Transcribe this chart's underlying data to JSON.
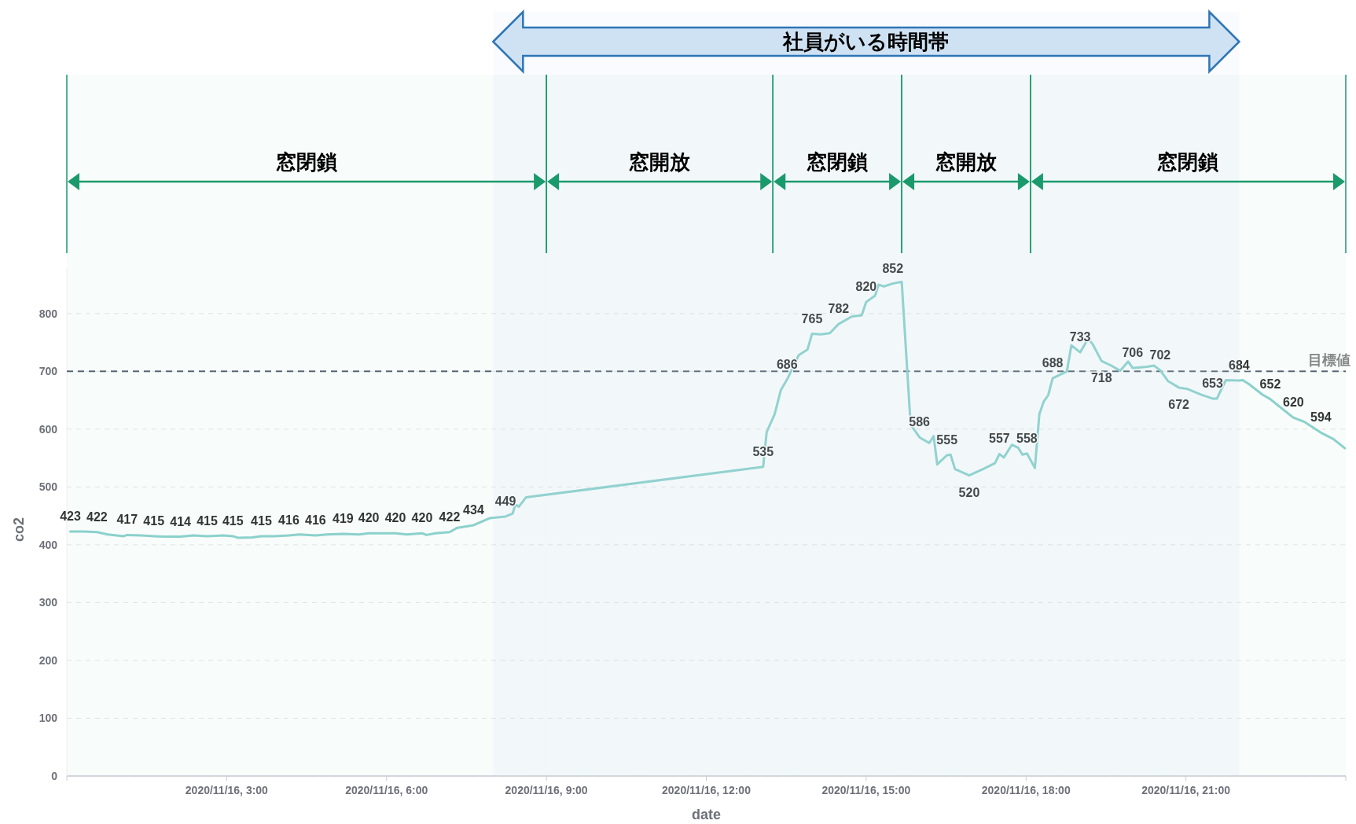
{
  "chart_data": {
    "type": "line",
    "xlabel": "date",
    "ylabel": "co2",
    "x": [
      "2020-11-16T00:04",
      "2020-11-16T00:19",
      "2020-11-16T00:34",
      "2020-11-16T00:46",
      "2020-11-16T01:04",
      "2020-11-16T01:08",
      "2020-11-16T01:24",
      "2020-11-16T01:38",
      "2020-11-16T01:49",
      "2020-11-16T02:08",
      "2020-11-16T02:22",
      "2020-11-16T02:38",
      "2020-11-16T02:56",
      "2020-11-16T03:07",
      "2020-11-16T03:13",
      "2020-11-16T03:29",
      "2020-11-16T03:39",
      "2020-11-16T03:53",
      "2020-11-16T04:10",
      "2020-11-16T04:22",
      "2020-11-16T04:40",
      "2020-11-16T04:53",
      "2020-11-16T05:11",
      "2020-11-16T05:29",
      "2020-11-16T05:40",
      "2020-11-16T06:10",
      "2020-11-16T06:23",
      "2020-11-16T06:40",
      "2020-11-16T06:45",
      "2020-11-16T06:55",
      "2020-11-16T07:11",
      "2020-11-16T07:19",
      "2020-11-16T07:38",
      "2020-11-16T07:56",
      "2020-11-16T08:14",
      "2020-11-16T08:22",
      "2020-11-16T08:25",
      "2020-11-16T08:29",
      "2020-11-16T08:37",
      "2020-11-16T13:04",
      "2020-11-16T13:08",
      "2020-11-16T13:17",
      "2020-11-16T13:24",
      "2020-11-16T13:31",
      "2020-11-16T13:44",
      "2020-11-16T13:54",
      "2020-11-16T13:59",
      "2020-11-16T14:09",
      "2020-11-16T14:19",
      "2020-11-16T14:29",
      "2020-11-16T14:44",
      "2020-11-16T14:55",
      "2020-11-16T15:00",
      "2020-11-16T15:10",
      "2020-11-16T15:14",
      "2020-11-16T15:20",
      "2020-11-16T15:30",
      "2020-11-16T15:40",
      "2020-11-16T15:50",
      "2020-11-16T16:00",
      "2020-11-16T16:11",
      "2020-11-16T16:16",
      "2020-11-16T16:20",
      "2020-11-16T16:31",
      "2020-11-16T16:35",
      "2020-11-16T16:40",
      "2020-11-16T16:56",
      "2020-11-16T17:13",
      "2020-11-16T17:25",
      "2020-11-16T17:30",
      "2020-11-16T17:35",
      "2020-11-16T17:44",
      "2020-11-16T17:51",
      "2020-11-16T17:56",
      "2020-11-16T18:01",
      "2020-11-16T18:10",
      "2020-11-16T18:15",
      "2020-11-16T18:20",
      "2020-11-16T18:25",
      "2020-11-16T18:30",
      "2020-11-16T18:46",
      "2020-11-16T18:51",
      "2020-11-16T19:01",
      "2020-11-16T19:10",
      "2020-11-16T19:15",
      "2020-11-16T19:25",
      "2020-11-16T19:36",
      "2020-11-16T19:46",
      "2020-11-16T19:55",
      "2020-11-16T20:00",
      "2020-11-16T20:16",
      "2020-11-16T20:24",
      "2020-11-16T20:31",
      "2020-11-16T20:40",
      "2020-11-16T20:52",
      "2020-11-16T21:01",
      "2020-11-16T21:17",
      "2020-11-16T21:30",
      "2020-11-16T21:35",
      "2020-11-16T21:38",
      "2020-11-16T21:45",
      "2020-11-16T22:00",
      "2020-11-16T22:04",
      "2020-11-16T22:11",
      "2020-11-16T22:26",
      "2020-11-16T22:35",
      "2020-11-16T22:43",
      "2020-11-16T23:01",
      "2020-11-16T23:13",
      "2020-11-16T23:32",
      "2020-11-16T23:46",
      "2020-11-16T23:59"
    ],
    "series": [
      {
        "color": "#8fd3d0",
        "values": [
          423,
          423,
          422,
          418,
          415,
          417,
          416,
          415,
          414,
          414,
          416,
          415,
          416,
          415,
          412,
          413,
          415,
          415,
          416,
          418,
          416,
          418,
          419,
          418,
          420,
          420,
          418,
          420,
          417,
          420,
          422,
          429,
          434,
          446,
          449,
          454,
          470,
          466,
          482,
          535,
          595,
          626,
          668,
          686,
          728,
          738,
          765,
          764,
          766,
          782,
          795,
          797,
          820,
          831,
          850,
          847,
          852,
          855,
          608,
          586,
          576,
          588,
          539,
          555,
          556,
          531,
          520,
          532,
          541,
          557,
          551,
          573,
          568,
          556,
          558,
          533,
          626,
          648,
          659,
          688,
          700,
          745,
          733,
          757,
          747,
          718,
          710,
          701,
          717,
          706,
          708,
          710,
          702,
          683,
          672,
          670,
          660,
          653,
          653,
          663,
          685,
          684,
          685,
          678,
          660,
          652,
          642,
          620,
          613,
          594,
          583,
          567
        ],
        "value_labels": [
          "423",
          null,
          "422",
          null,
          null,
          "417",
          null,
          "415",
          null,
          "414",
          null,
          "415",
          null,
          "415",
          null,
          null,
          "415",
          null,
          "416",
          null,
          "416",
          null,
          "419",
          null,
          "420",
          "420",
          null,
          "420",
          null,
          null,
          "422",
          null,
          "434",
          null,
          "449",
          null,
          null,
          null,
          null,
          "535",
          null,
          null,
          null,
          "686",
          null,
          null,
          "765",
          null,
          null,
          "782",
          null,
          null,
          "820",
          null,
          null,
          null,
          "852",
          null,
          null,
          "586",
          null,
          null,
          null,
          "555",
          null,
          null,
          "520",
          null,
          null,
          "557",
          null,
          null,
          null,
          null,
          "558",
          null,
          null,
          null,
          null,
          "688",
          null,
          null,
          "733",
          null,
          null,
          "718",
          null,
          null,
          null,
          "706",
          null,
          null,
          "702",
          null,
          "672",
          null,
          null,
          "653",
          null,
          null,
          null,
          "684",
          null,
          null,
          null,
          "652",
          null,
          "620",
          null,
          "594",
          null,
          null
        ]
      }
    ],
    "xlim": [
      "2020-11-16T00:00",
      "2020-11-17T00:00"
    ],
    "xticks": [
      {
        "value": "2020-11-16T03:00",
        "label": "2020/11/16, 3:00"
      },
      {
        "value": "2020-11-16T06:00",
        "label": "2020/11/16, 6:00"
      },
      {
        "value": "2020-11-16T09:00",
        "label": "2020/11/16, 9:00"
      },
      {
        "value": "2020-11-16T12:00",
        "label": "2020/11/16, 12:00"
      },
      {
        "value": "2020-11-16T15:00",
        "label": "2020/11/16, 15:00"
      },
      {
        "value": "2020-11-16T18:00",
        "label": "2020/11/16, 18:00"
      },
      {
        "value": "2020-11-16T21:00",
        "label": "2020/11/16, 21:00"
      }
    ],
    "ylim": [
      0,
      880
    ],
    "yticks": [
      0,
      100,
      200,
      300,
      400,
      500,
      600,
      700,
      800
    ],
    "grid": "y",
    "ref_lines": [
      {
        "axis": "y",
        "value": 700,
        "label": "目標値",
        "color": "#5a6475",
        "line_style": "dashed"
      }
    ],
    "bands": [
      {
        "axis": "x",
        "from": "2020-11-16T08:00",
        "to": "2020-11-16T22:00",
        "label": "社員がいる時間帯",
        "color": "#cfe2f3"
      },
      {
        "axis": "x",
        "from": "2020-11-16T00:00",
        "to": "2020-11-16T09:00",
        "label": "窓閉鎖",
        "color": "#1a9a6c"
      },
      {
        "axis": "x",
        "from": "2020-11-16T09:00",
        "to": "2020-11-16T13:15",
        "label": "窓開放",
        "color": "#1a9a6c"
      },
      {
        "axis": "x",
        "from": "2020-11-16T13:15",
        "to": "2020-11-16T15:40",
        "label": "窓閉鎖",
        "color": "#1a9a6c"
      },
      {
        "axis": "x",
        "from": "2020-11-16T15:40",
        "to": "2020-11-16T18:05",
        "label": "窓開放",
        "color": "#1a9a6c"
      },
      {
        "axis": "x",
        "from": "2020-11-16T18:05",
        "to": "2020-11-17T00:00",
        "label": "窓閉鎖",
        "color": "#1a9a6c"
      }
    ]
  }
}
